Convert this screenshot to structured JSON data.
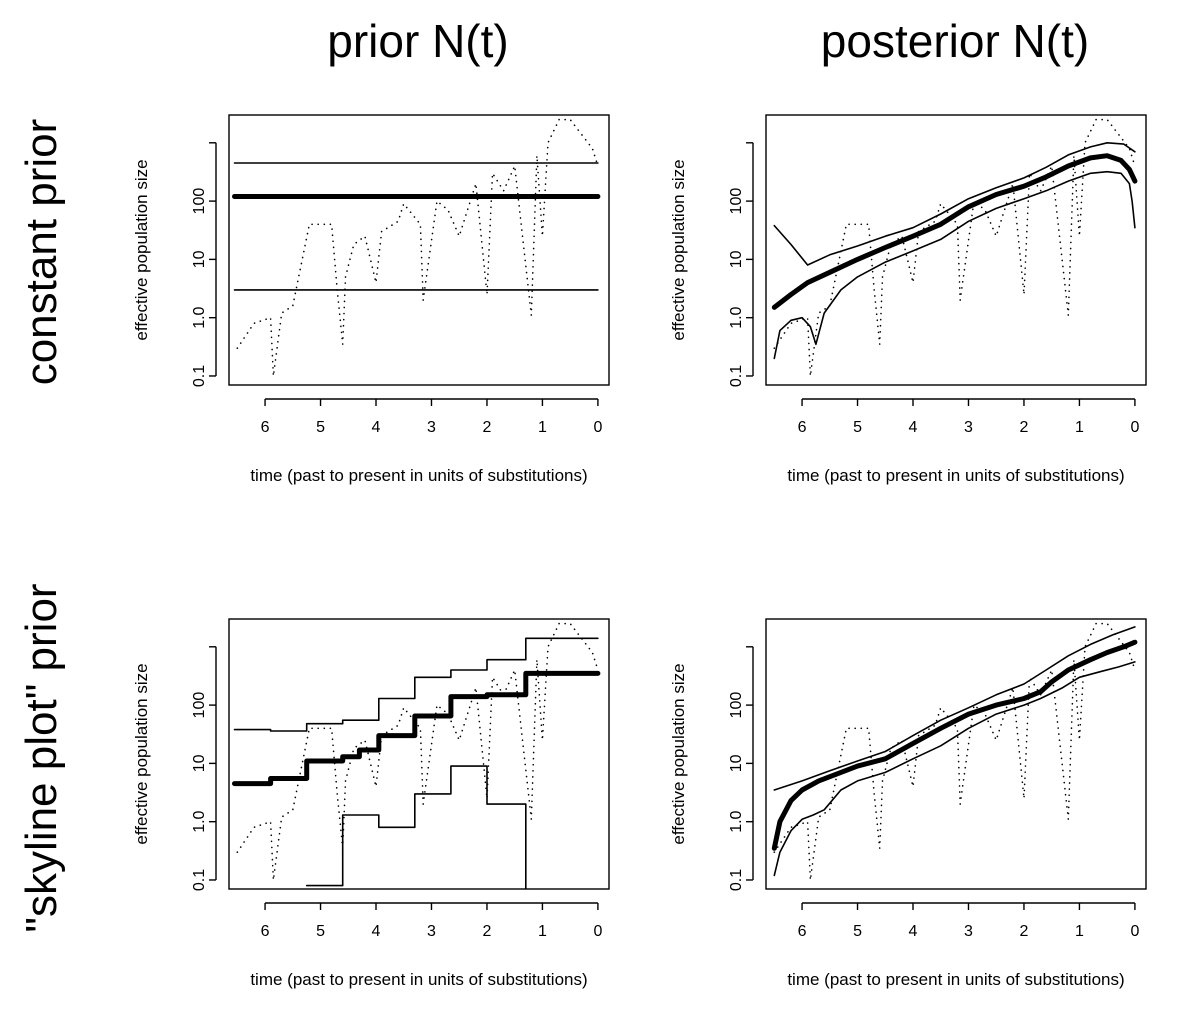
{
  "titles": {
    "col_left": "prior N(t)",
    "col_right": "posterior N(t)",
    "row_top": "constant prior",
    "row_bottom": "\"skyline plot\" prior"
  },
  "chart_data": [
    {
      "type": "line",
      "panel": "constant prior / prior N(t)",
      "xlabel": "time (past to present in units of substitutions)",
      "ylabel": "effective population size",
      "x_reversed": true,
      "y_scale": "log",
      "xlim": [
        6.65,
        -0.2
      ],
      "ylim": [
        0.07,
        3000
      ],
      "x_ticks": [
        "6",
        "5",
        "4",
        "3",
        "2",
        "1",
        "0"
      ],
      "y_ticks": [
        "0.1",
        "1.0",
        "10",
        "100",
        "",
        ""
      ],
      "series": [
        {
          "role": "median",
          "style": "thick",
          "x": [
            6.55,
            0
          ],
          "y": [
            120,
            120
          ]
        },
        {
          "role": "upper",
          "style": "thin",
          "x": [
            6.55,
            0
          ],
          "y": [
            450,
            450
          ]
        },
        {
          "role": "lower",
          "style": "thin",
          "x": [
            6.55,
            0
          ],
          "y": [
            3,
            3
          ]
        },
        {
          "role": "true",
          "style": "dotted",
          "x": [
            6.5,
            6.2,
            5.9,
            5.85,
            5.7,
            5.5,
            5.2,
            4.8,
            4.7,
            4.6,
            4.55,
            4.4,
            4.2,
            4.0,
            3.9,
            3.6,
            3.5,
            3.2,
            3.15,
            2.9,
            2.7,
            2.5,
            2.2,
            2.0,
            1.9,
            1.7,
            1.5,
            1.2,
            1.1,
            1.0,
            0.9,
            0.7,
            0.5,
            0.1,
            0
          ],
          "y": [
            0.3,
            0.8,
            1.0,
            0.1,
            1.2,
            1.6,
            40,
            40,
            3,
            0.35,
            5,
            18,
            25,
            4,
            30,
            45,
            90,
            40,
            2,
            100,
            70,
            25,
            200,
            2.5,
            300,
            150,
            400,
            1.1,
            600,
            25,
            1000,
            2500,
            2500,
            800,
            400
          ]
        }
      ]
    },
    {
      "type": "line",
      "panel": "constant prior / posterior N(t)",
      "xlabel": "time (past to present in units of substitutions)",
      "ylabel": "effective population size",
      "x_reversed": true,
      "y_scale": "log",
      "xlim": [
        6.65,
        -0.2
      ],
      "ylim": [
        0.07,
        3000
      ],
      "x_ticks": [
        "6",
        "5",
        "4",
        "3",
        "2",
        "1",
        "0"
      ],
      "y_ticks": [
        "0.1",
        "1.0",
        "10",
        "100",
        "",
        ""
      ],
      "series": [
        {
          "role": "median",
          "style": "thick",
          "x": [
            6.5,
            6.2,
            5.9,
            5.5,
            5.0,
            4.5,
            4.0,
            3.5,
            3.0,
            2.5,
            2.0,
            1.6,
            1.2,
            0.8,
            0.5,
            0.25,
            0.1,
            0
          ],
          "y": [
            1.5,
            2.5,
            4,
            6,
            10,
            16,
            25,
            40,
            80,
            130,
            180,
            260,
            400,
            550,
            600,
            500,
            350,
            220
          ]
        },
        {
          "role": "upper",
          "style": "thin",
          "x": [
            6.5,
            6.2,
            5.9,
            5.5,
            5.0,
            4.5,
            4.0,
            3.5,
            3.0,
            2.5,
            2.0,
            1.6,
            1.2,
            0.8,
            0.5,
            0.2,
            0
          ],
          "y": [
            38,
            18,
            8,
            12,
            17,
            25,
            35,
            60,
            110,
            170,
            250,
            380,
            620,
            850,
            1000,
            950,
            700
          ]
        },
        {
          "role": "lower",
          "style": "thin",
          "x": [
            6.5,
            6.4,
            6.2,
            6.0,
            5.85,
            5.75,
            5.6,
            5.3,
            5.0,
            4.5,
            4.0,
            3.5,
            3.0,
            2.5,
            2.0,
            1.6,
            1.2,
            0.8,
            0.5,
            0.25,
            0.1,
            0.05,
            0
          ],
          "y": [
            0.2,
            0.6,
            0.9,
            1.0,
            0.7,
            0.35,
            1.2,
            3,
            5,
            9,
            14,
            22,
            45,
            75,
            110,
            150,
            220,
            300,
            320,
            300,
            200,
            100,
            35
          ]
        },
        {
          "role": "true",
          "style": "dotted",
          "x": [
            6.5,
            6.2,
            5.9,
            5.85,
            5.7,
            5.5,
            5.2,
            4.8,
            4.7,
            4.6,
            4.55,
            4.4,
            4.2,
            4.0,
            3.9,
            3.6,
            3.5,
            3.2,
            3.15,
            2.9,
            2.7,
            2.5,
            2.2,
            2.0,
            1.9,
            1.7,
            1.5,
            1.2,
            1.1,
            1.0,
            0.9,
            0.7,
            0.5,
            0.1,
            0
          ],
          "y": [
            0.3,
            0.8,
            1.0,
            0.1,
            1.2,
            1.6,
            40,
            40,
            3,
            0.35,
            5,
            18,
            25,
            4,
            30,
            45,
            90,
            40,
            2,
            100,
            70,
            25,
            200,
            2.5,
            300,
            150,
            400,
            1.1,
            600,
            25,
            1000,
            2500,
            2500,
            800,
            400
          ]
        }
      ]
    },
    {
      "type": "line",
      "panel": "skyline plot prior / prior N(t)",
      "xlabel": "time (past to present in units of substitutions)",
      "ylabel": "effective population size",
      "x_reversed": true,
      "y_scale": "log",
      "xlim": [
        6.65,
        -0.2
      ],
      "ylim": [
        0.07,
        3000
      ],
      "x_ticks": [
        "6",
        "5",
        "4",
        "3",
        "2",
        "1",
        "0"
      ],
      "y_ticks": [
        "0.1",
        "1.0",
        "10",
        "100",
        "",
        ""
      ],
      "series": [
        {
          "role": "median",
          "style": "thick-step",
          "x": [
            6.55,
            5.9,
            5.9,
            5.25,
            5.25,
            4.6,
            4.6,
            4.3,
            4.3,
            3.95,
            3.95,
            3.3,
            3.3,
            2.65,
            2.65,
            2.0,
            2.0,
            1.3,
            1.3,
            0
          ],
          "y": [
            4.5,
            4.5,
            5.5,
            5.5,
            11,
            11,
            13,
            13,
            17,
            17,
            30,
            30,
            65,
            65,
            140,
            140,
            150,
            150,
            350,
            350
          ]
        },
        {
          "role": "upper",
          "style": "step",
          "x": [
            6.55,
            5.9,
            5.9,
            5.25,
            5.25,
            4.6,
            4.6,
            3.95,
            3.95,
            3.3,
            3.3,
            2.65,
            2.65,
            2.0,
            2.0,
            1.3,
            1.3,
            0
          ],
          "y": [
            38,
            38,
            36,
            36,
            48,
            48,
            55,
            55,
            130,
            130,
            300,
            300,
            400,
            400,
            600,
            600,
            1400,
            1400
          ]
        },
        {
          "role": "lower",
          "style": "step",
          "x": [
            5.25,
            4.6,
            4.6,
            3.95,
            3.95,
            3.3,
            3.3,
            2.65,
            2.65,
            2.0,
            2.0,
            1.3,
            1.3
          ],
          "y": [
            0.08,
            0.08,
            1.3,
            1.3,
            0.8,
            0.8,
            3,
            3,
            9,
            9,
            2,
            2,
            0.07
          ]
        },
        {
          "role": "true",
          "style": "dotted",
          "x": [
            6.5,
            6.2,
            5.9,
            5.85,
            5.7,
            5.5,
            5.2,
            4.8,
            4.7,
            4.6,
            4.55,
            4.4,
            4.2,
            4.0,
            3.9,
            3.6,
            3.5,
            3.2,
            3.15,
            2.9,
            2.7,
            2.5,
            2.2,
            2.0,
            1.9,
            1.7,
            1.5,
            1.2,
            1.1,
            1.0,
            0.9,
            0.7,
            0.5,
            0.1,
            0
          ],
          "y": [
            0.3,
            0.8,
            1.0,
            0.1,
            1.2,
            1.6,
            40,
            40,
            3,
            0.35,
            5,
            18,
            25,
            4,
            30,
            45,
            90,
            40,
            2,
            100,
            70,
            25,
            200,
            2.5,
            300,
            150,
            400,
            1.1,
            600,
            25,
            1000,
            2500,
            2500,
            800,
            400
          ]
        }
      ]
    },
    {
      "type": "line",
      "panel": "skyline plot prior / posterior N(t)",
      "xlabel": "time (past to present in units of substitutions)",
      "ylabel": "effective population size",
      "x_reversed": true,
      "y_scale": "log",
      "xlim": [
        6.65,
        -0.2
      ],
      "ylim": [
        0.07,
        3000
      ],
      "x_ticks": [
        "6",
        "5",
        "4",
        "3",
        "2",
        "1",
        "0"
      ],
      "y_ticks": [
        "0.1",
        "1.0",
        "10",
        "100",
        "",
        ""
      ],
      "series": [
        {
          "role": "median",
          "style": "thick",
          "x": [
            6.5,
            6.4,
            6.2,
            6.0,
            5.7,
            5.3,
            5.0,
            4.5,
            4.0,
            3.5,
            3.0,
            2.5,
            2.0,
            1.7,
            1.5,
            1.2,
            0.8,
            0.5,
            0.2,
            0
          ],
          "y": [
            0.35,
            1.0,
            2.3,
            3.5,
            5,
            7,
            9,
            12,
            22,
            40,
            70,
            100,
            130,
            170,
            250,
            400,
            600,
            800,
            1000,
            1200
          ]
        },
        {
          "role": "upper",
          "style": "thin",
          "x": [
            6.5,
            6.0,
            5.5,
            5.0,
            4.5,
            4.0,
            3.5,
            3.0,
            2.5,
            2.0,
            1.6,
            1.2,
            0.8,
            0.4,
            0
          ],
          "y": [
            3.5,
            5,
            7.5,
            11,
            16,
            30,
            55,
            90,
            150,
            230,
            400,
            700,
            1100,
            1600,
            2200
          ]
        },
        {
          "role": "lower",
          "style": "thin",
          "x": [
            6.5,
            6.4,
            6.2,
            6.0,
            5.8,
            5.6,
            5.3,
            5.0,
            4.5,
            4.0,
            3.5,
            3.0,
            2.5,
            2.0,
            1.7,
            1.3,
            1.0,
            0.6,
            0.3,
            0
          ],
          "y": [
            0.12,
            0.3,
            0.7,
            1.1,
            1.3,
            1.6,
            3.5,
            5,
            7,
            12,
            20,
            40,
            70,
            100,
            130,
            200,
            300,
            380,
            450,
            550
          ]
        },
        {
          "role": "true",
          "style": "dotted",
          "x": [
            6.5,
            6.2,
            5.9,
            5.85,
            5.7,
            5.5,
            5.2,
            4.8,
            4.7,
            4.6,
            4.55,
            4.4,
            4.2,
            4.0,
            3.9,
            3.6,
            3.5,
            3.2,
            3.15,
            2.9,
            2.7,
            2.5,
            2.2,
            2.0,
            1.9,
            1.7,
            1.5,
            1.2,
            1.1,
            1.0,
            0.9,
            0.7,
            0.5,
            0.1,
            0
          ],
          "y": [
            0.3,
            0.8,
            1.0,
            0.1,
            1.2,
            1.6,
            40,
            40,
            3,
            0.35,
            5,
            18,
            25,
            4,
            30,
            45,
            90,
            40,
            2,
            100,
            70,
            25,
            200,
            2.5,
            300,
            150,
            400,
            1.1,
            600,
            25,
            1000,
            2500,
            2500,
            800,
            400
          ]
        }
      ]
    }
  ]
}
